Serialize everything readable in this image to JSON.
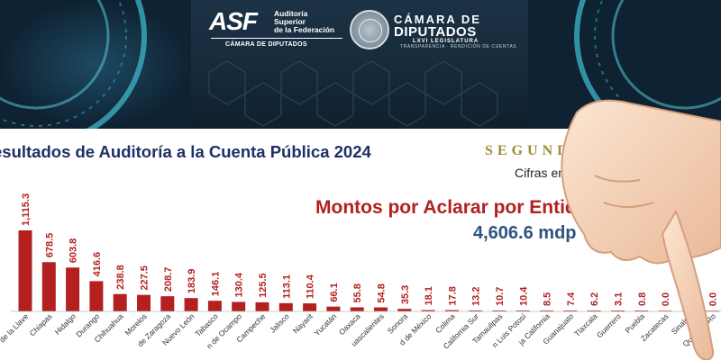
{
  "header": {
    "asf_letters": "ASF",
    "asf_subtitle": "Auditoría\nSuperior\nde la Federación",
    "asf_camara": "CÁMARA DE DIPUTADOS",
    "camara_top": "CÁMARA DE",
    "camara_main": "DIPUTADOS",
    "camara_legislature": "LXVI LEGISLATURA",
    "camara_motto": "TRANSPARENCIA · RENDICIÓN DE CUENTAS"
  },
  "title": "esultados de Auditoría a la Cuenta Pública 2024",
  "segunda": "SEGUNDA ENTREGA",
  "cifras": "Cifras en millones de pesos",
  "montos_title": "Montos por Aclarar por Entidad Federativa",
  "total": "4,606.6 mdp",
  "colors": {
    "bar": "#b3201f",
    "title": "#1f3064",
    "total": "#2d5382",
    "gold": "#a08b3a"
  },
  "chart_data": {
    "type": "bar",
    "title": "Montos por Aclarar por Entidad Federativa",
    "categories": [
      "Veracruz de Ignacio de la Llave",
      "Chiapas",
      "Hidalgo",
      "Durango",
      "Chihuahua",
      "Morelos",
      "Coahuila de Zaragoza",
      "Nuevo León",
      "Tabasco",
      "Michoacán de Ocampo",
      "Campeche",
      "Jalisco",
      "Nayarit",
      "Yucatán",
      "Oaxaca",
      "Aguascalientes",
      "Sonora",
      "Ciudad de México",
      "Colima",
      "Baja California Sur",
      "Tamaulipas",
      "San Luis Potosí",
      "Baja California",
      "Guanajuato",
      "Tlaxcala",
      "Guerrero",
      "Puebla",
      "Zacatecas",
      "Sinaloa",
      "Quintana Roo"
    ],
    "tick_labels": [
      "de la Llave",
      "Chiapas",
      "Hidalgo",
      "Durango",
      "Chihuahua",
      "Morelos",
      "de Zaragoza",
      "Nuevo León",
      "Tabasco",
      "n de Ocampo",
      "Campeche",
      "Jalisco",
      "Nayarit",
      "Yucatán",
      "Oaxaca",
      "uascalientes",
      "Sonora",
      "d de México",
      "Colima",
      "California Sur",
      "Tamaulipas",
      "n Luis Potosí",
      "ja California",
      "Guanajuato",
      "Tlaxcala",
      "Guerrero",
      "Puebla",
      "Zacatecas",
      "Sinaloa",
      "Quintana Ro"
    ],
    "values": [
      1115.3,
      678.5,
      603.8,
      416.6,
      238.8,
      227.5,
      208.7,
      183.9,
      146.1,
      130.4,
      125.5,
      113.1,
      110.4,
      66.1,
      55.8,
      54.8,
      35.3,
      18.1,
      17.8,
      13.2,
      10.7,
      10.4,
      8.5,
      7.4,
      6.2,
      3.1,
      0.8,
      0.0,
      0.0,
      0.0
    ],
    "value_labels": [
      "1,115.3",
      "678.5",
      "603.8",
      "416.6",
      "238.8",
      "227.5",
      "208.7",
      "183.9",
      "146.1",
      "130.4",
      "125.5",
      "113.1",
      "110.4",
      "66.1",
      "55.8",
      "54.8",
      "35.3",
      "18.1",
      "17.8",
      "13.2",
      "10.7",
      "10.4",
      "8.5",
      "7.4",
      "6.2",
      "3.1",
      "0.8",
      "0.0",
      "0.0",
      "0.0"
    ],
    "unit": "mdp",
    "ylim": [
      0,
      1115.3
    ],
    "grid": false,
    "legend": "none"
  }
}
